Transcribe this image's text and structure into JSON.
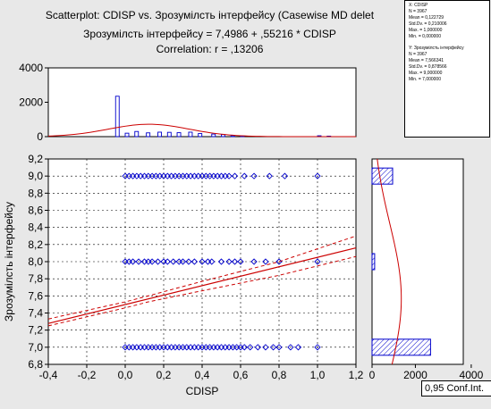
{
  "titles": {
    "line1": "Scatterplot: CDISP    vs. Зрозумілсть інтерфейсу  (Casewise MD delet",
    "line2": "Зрозумілсть інтерфейсу  = 7,4986 + ,55216 * CDISP",
    "line3": "Correlation: r = ,13206"
  },
  "conf_label": "0,95 Conf.Int.",
  "stats": {
    "x": [
      "X: CDISP",
      "N = 3967",
      "Mean = 0,122729",
      "Std.Dv. = 0,210006",
      "Max. = 1,000000",
      "Min. = 0,000000"
    ],
    "y": [
      "Y: Зрозумілсть інтерфейсу",
      "N = 3967",
      "Mean = 7,566341",
      "Std.Dv. = 0,878566",
      "Max. = 9,000000",
      "Min. = 7,000000"
    ]
  },
  "colors": {
    "points": "#0000cc",
    "fit": "#cc0000",
    "bars": "#0000cc",
    "background": "#e8e8e8",
    "plot": "#ffffff"
  },
  "chart_data": [
    {
      "type": "scatter",
      "xlabel": "CDISP",
      "ylabel": "Зрозумілсть інтерфейсу",
      "xlim": [
        -0.4,
        1.2
      ],
      "ylim": [
        6.8,
        9.2
      ],
      "x_ticks": [
        "-0,4",
        "-0,2",
        "0,0",
        "0,2",
        "0,4",
        "0,6",
        "0,8",
        "1,0",
        "1,2"
      ],
      "y_ticks": [
        "6,8",
        "7,0",
        "7,2",
        "7,4",
        "7,6",
        "7,8",
        "8,0",
        "8,2",
        "8,4",
        "8,6",
        "8,8",
        "9,0",
        "9,2"
      ],
      "grid": true,
      "series": [
        {
          "y": 9.0,
          "x": [
            0.0,
            0.02,
            0.04,
            0.06,
            0.08,
            0.1,
            0.12,
            0.14,
            0.16,
            0.18,
            0.2,
            0.22,
            0.24,
            0.26,
            0.28,
            0.3,
            0.32,
            0.34,
            0.36,
            0.38,
            0.4,
            0.42,
            0.44,
            0.46,
            0.48,
            0.5,
            0.52,
            0.54,
            0.57,
            0.62,
            0.67,
            0.75,
            0.83,
            1.0
          ]
        },
        {
          "y": 8.0,
          "x": [
            0.0,
            0.02,
            0.04,
            0.07,
            0.1,
            0.12,
            0.14,
            0.17,
            0.2,
            0.22,
            0.25,
            0.28,
            0.3,
            0.33,
            0.36,
            0.4,
            0.43,
            0.45,
            0.5,
            0.54,
            0.57,
            0.6,
            0.67,
            0.73,
            0.8,
            1.0
          ]
        },
        {
          "y": 7.0,
          "x": [
            0.0,
            0.02,
            0.04,
            0.06,
            0.08,
            0.1,
            0.12,
            0.14,
            0.16,
            0.18,
            0.2,
            0.22,
            0.24,
            0.26,
            0.28,
            0.3,
            0.32,
            0.34,
            0.36,
            0.38,
            0.4,
            0.42,
            0.44,
            0.46,
            0.48,
            0.5,
            0.52,
            0.54,
            0.56,
            0.58,
            0.6,
            0.62,
            0.65,
            0.69,
            0.73,
            0.77,
            0.8,
            0.86,
            0.9,
            1.0
          ]
        }
      ],
      "regression": {
        "intercept": 7.4986,
        "slope": 0.55216
      },
      "confidence_band": {
        "x": [
          -0.4,
          0.0,
          0.12,
          0.4,
          0.8,
          1.2
        ],
        "lower": [
          7.25,
          7.46,
          7.53,
          7.66,
          7.84,
          8.06
        ],
        "upper": [
          7.33,
          7.53,
          7.6,
          7.77,
          8.0,
          8.3
        ]
      }
    },
    {
      "type": "bar",
      "name": "histogram-x",
      "ylim": [
        0,
        4000
      ],
      "y_ticks": [
        "0",
        "2000",
        "4000"
      ],
      "bins": [
        {
          "x": -0.05,
          "count": 2350
        },
        {
          "x": 0.0,
          "count": 200
        },
        {
          "x": 0.05,
          "count": 300
        },
        {
          "x": 0.11,
          "count": 220
        },
        {
          "x": 0.17,
          "count": 260
        },
        {
          "x": 0.22,
          "count": 250
        },
        {
          "x": 0.27,
          "count": 230
        },
        {
          "x": 0.33,
          "count": 260
        },
        {
          "x": 0.38,
          "count": 180
        },
        {
          "x": 0.45,
          "count": 150
        },
        {
          "x": 0.5,
          "count": 120
        },
        {
          "x": 0.55,
          "count": 60
        },
        {
          "x": 0.6,
          "count": 30
        },
        {
          "x": 1.0,
          "count": 50
        },
        {
          "x": 1.05,
          "count": 30
        }
      ],
      "normal_curve": {
        "mean": 0.122729,
        "sd": 0.210006,
        "peak": 720
      }
    },
    {
      "type": "bar",
      "name": "histogram-y",
      "orientation": "horizontal",
      "xlim": [
        0,
        4000
      ],
      "x_ticks": [
        "0",
        "2000",
        "4000"
      ],
      "bins": [
        {
          "y": 9.0,
          "count": 950
        },
        {
          "y": 8.0,
          "count": 120
        },
        {
          "y": 7.0,
          "count": 2700
        }
      ],
      "normal_curve": {
        "mean": 7.566341,
        "sd": 0.878566,
        "peak": 1350
      }
    }
  ]
}
